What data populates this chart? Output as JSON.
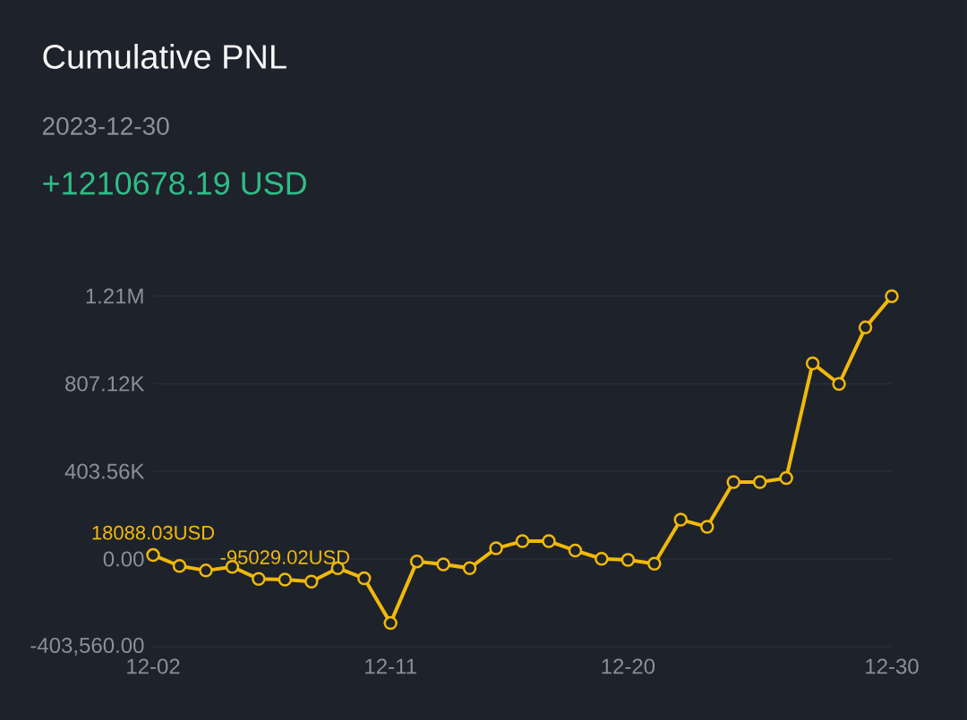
{
  "chart_data": {
    "type": "line",
    "title": "Cumulative PNL",
    "subtitle": "2023-12-30",
    "annotations": [
      "+1210678.19 USD"
    ],
    "x": [
      "2023-12-02",
      "2023-12-03",
      "2023-12-04",
      "2023-12-05",
      "2023-12-06",
      "2023-12-07",
      "2023-12-08",
      "2023-12-09",
      "2023-12-10",
      "2023-12-11",
      "2023-12-12",
      "2023-12-13",
      "2023-12-14",
      "2023-12-15",
      "2023-12-16",
      "2023-12-17",
      "2023-12-18",
      "2023-12-19",
      "2023-12-20",
      "2023-12-21",
      "2023-12-22",
      "2023-12-23",
      "2023-12-24",
      "2023-12-25",
      "2023-12-26",
      "2023-12-27",
      "2023-12-28",
      "2023-12-29",
      "2023-12-30"
    ],
    "series": [
      {
        "color": "#f0b90b",
        "values": [
          18088.03,
          -32000,
          -53000,
          -36000,
          -92000,
          -95029.02,
          -104000,
          -42000,
          -89000,
          -295000,
          -11000,
          -25000,
          -42000,
          49000,
          82000,
          82000,
          39000,
          1000,
          -4000,
          -22000,
          181000,
          148000,
          354000,
          354000,
          373000,
          901000,
          806000,
          1066000,
          1210000
        ],
        "value_labels": [
          "18088.03USD",
          null,
          null,
          null,
          null,
          "-95029.02USD",
          null,
          null,
          null,
          null,
          null,
          null,
          null,
          null,
          null,
          null,
          null,
          null,
          null,
          null,
          null,
          null,
          null,
          null,
          null,
          null,
          null,
          null,
          null
        ]
      }
    ],
    "xlim": [
      "2023-12-02",
      "2023-12-30"
    ],
    "xticks": [
      {
        "value": "2023-12-02",
        "label": "12-02"
      },
      {
        "value": "2023-12-11",
        "label": "12-11"
      },
      {
        "value": "2023-12-20",
        "label": "12-20"
      },
      {
        "value": "2023-12-30",
        "label": "12-30"
      }
    ],
    "ylim": [
      -403560,
      1210680
    ],
    "yticks": [
      {
        "value": -403560,
        "label": "-403,560.00"
      },
      {
        "value": 0,
        "label": "0.00"
      },
      {
        "value": 403560,
        "label": "403.56K"
      },
      {
        "value": 807120,
        "label": "807.12K"
      },
      {
        "value": 1210680,
        "label": "1.21M"
      }
    ],
    "grid": "y",
    "marker": "circle",
    "line_style": "solid"
  }
}
